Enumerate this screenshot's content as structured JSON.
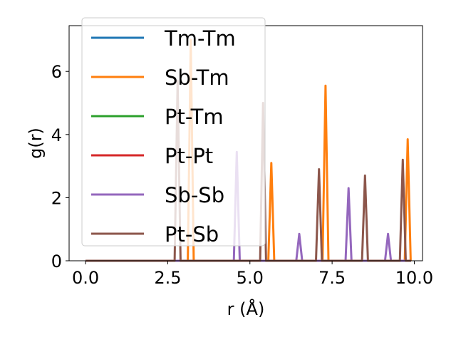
{
  "chart_data": {
    "type": "line",
    "title": "",
    "xlabel": "r (Å)",
    "ylabel": "g(r)",
    "xlim": [
      -0.5,
      10.25
    ],
    "ylim": [
      0,
      7.45
    ],
    "xticks": [
      "0.0",
      "2.5",
      "5.0",
      "7.5",
      "10.0"
    ],
    "xtick_values": [
      0,
      2.5,
      5,
      7.5,
      10
    ],
    "yticks": [
      "0",
      "2",
      "4",
      "6"
    ],
    "ytick_values": [
      0,
      2,
      4,
      6
    ],
    "grid": false,
    "legend_placement": "top-left",
    "series": [
      {
        "name": "Tm-Tm",
        "color": "#1f77b4",
        "peaks": []
      },
      {
        "name": "Sb-Tm",
        "color": "#ff7f0e",
        "peaks": [
          [
            3.2,
            7.0
          ],
          [
            5.65,
            3.1
          ],
          [
            7.3,
            5.55
          ],
          [
            9.8,
            3.85
          ]
        ]
      },
      {
        "name": "Pt-Tm",
        "color": "#2ca02c",
        "peaks": []
      },
      {
        "name": "Pt-Pt",
        "color": "#d62728",
        "peaks": []
      },
      {
        "name": "Sb-Sb",
        "color": "#9467bd",
        "peaks": [
          [
            4.6,
            3.45
          ],
          [
            6.5,
            0.85
          ],
          [
            8.0,
            2.3
          ],
          [
            9.2,
            0.85
          ]
        ]
      },
      {
        "name": "Pt-Sb",
        "color": "#8c564b",
        "peaks": [
          [
            2.8,
            5.7
          ],
          [
            5.4,
            5.0
          ],
          [
            7.1,
            2.9
          ],
          [
            8.5,
            2.7
          ],
          [
            9.65,
            3.2
          ]
        ]
      }
    ],
    "x_range": [
      0,
      9.9
    ]
  }
}
